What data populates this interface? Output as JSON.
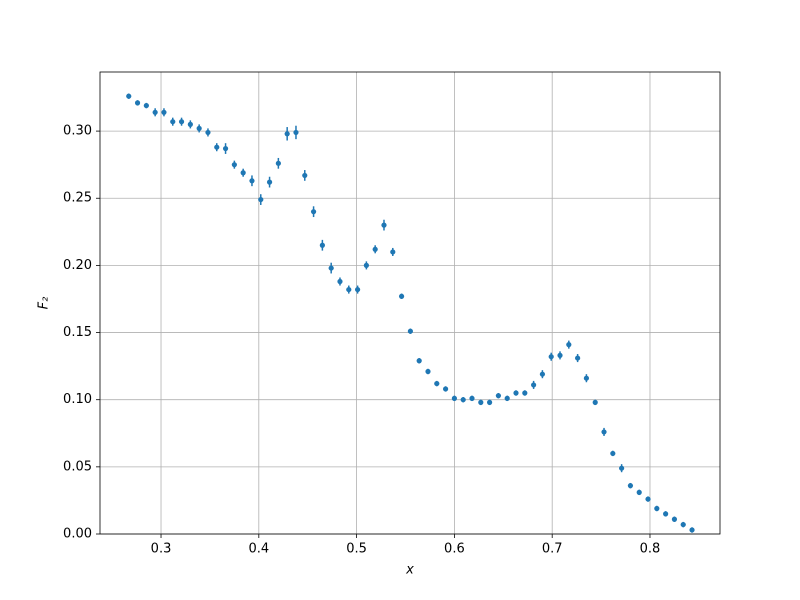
{
  "chart_data": {
    "type": "errorbar",
    "xlabel": "x",
    "ylabel": "F₂",
    "xlim": [
      0.2376,
      0.8716
    ],
    "ylim": [
      0,
      0.344
    ],
    "xticks": [
      0.3,
      0.4,
      0.5,
      0.6,
      0.7,
      0.8
    ],
    "yticks": [
      {
        "value": 0,
        "label": "0.00"
      },
      {
        "value": 0.05,
        "label": "0.05"
      },
      {
        "value": 0.1,
        "label": "0.10"
      },
      {
        "value": 0.15,
        "label": "0.15"
      },
      {
        "value": 0.2,
        "label": "0.20"
      },
      {
        "value": 0.25,
        "label": "0.25"
      },
      {
        "value": 0.3,
        "label": "0.30"
      }
    ],
    "grid": true,
    "series": [
      {
        "color": "#1f77b4",
        "x": [
          0.267,
          0.276,
          0.285,
          0.294,
          0.303,
          0.312,
          0.321,
          0.33,
          0.339,
          0.348,
          0.357,
          0.366,
          0.375,
          0.384,
          0.393,
          0.402,
          0.411,
          0.42,
          0.429,
          0.438,
          0.447,
          0.456,
          0.465,
          0.474,
          0.483,
          0.492,
          0.501,
          0.51,
          0.519,
          0.528,
          0.537,
          0.546,
          0.555,
          0.564,
          0.573,
          0.582,
          0.591,
          0.6,
          0.609,
          0.618,
          0.627,
          0.636,
          0.645,
          0.654,
          0.663,
          0.672,
          0.681,
          0.69,
          0.699,
          0.708,
          0.717,
          0.726,
          0.735,
          0.744,
          0.753,
          0.762,
          0.771,
          0.78,
          0.789,
          0.798,
          0.807,
          0.816,
          0.825,
          0.834,
          0.843
        ],
        "values": [
          0.326,
          0.321,
          0.319,
          0.314,
          0.314,
          0.307,
          0.307,
          0.305,
          0.302,
          0.299,
          0.288,
          0.287,
          0.275,
          0.269,
          0.263,
          0.249,
          0.262,
          0.276,
          0.298,
          0.299,
          0.267,
          0.24,
          0.215,
          0.198,
          0.188,
          0.182,
          0.182,
          0.2,
          0.212,
          0.23,
          0.21,
          0.177,
          0.151,
          0.129,
          0.121,
          0.112,
          0.108,
          0.101,
          0.1,
          0.101,
          0.098,
          0.098,
          0.103,
          0.101,
          0.105,
          0.105,
          0.111,
          0.119,
          0.132,
          0.133,
          0.141,
          0.131,
          0.116,
          0.098,
          0.076,
          0.06,
          0.049,
          0.036,
          0.031,
          0.026,
          0.019,
          0.015,
          0.011,
          0.007,
          0.003
        ],
        "errors": [
          0.002,
          0.002,
          0.002,
          0.003,
          0.003,
          0.003,
          0.003,
          0.003,
          0.003,
          0.003,
          0.003,
          0.004,
          0.003,
          0.003,
          0.004,
          0.004,
          0.004,
          0.004,
          0.005,
          0.005,
          0.004,
          0.004,
          0.004,
          0.004,
          0.003,
          0.003,
          0.003,
          0.003,
          0.003,
          0.004,
          0.003,
          0.002,
          0.002,
          0.002,
          0.002,
          0.002,
          0.002,
          0.002,
          0.002,
          0.002,
          0.002,
          0.002,
          0.002,
          0.002,
          0.002,
          0.002,
          0.003,
          0.003,
          0.003,
          0.003,
          0.003,
          0.003,
          0.003,
          0.002,
          0.003,
          0.002,
          0.003,
          0.002,
          0.002,
          0.002,
          0.002,
          0.002,
          0.002,
          0.002,
          0.002
        ]
      }
    ]
  }
}
